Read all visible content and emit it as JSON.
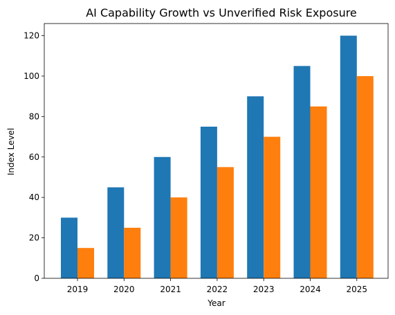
{
  "chart_data": {
    "type": "bar",
    "title": "AI Capability Growth vs Unverified Risk Exposure",
    "xlabel": "Year",
    "ylabel": "Index Level",
    "categories": [
      "2019",
      "2020",
      "2021",
      "2022",
      "2023",
      "2024",
      "2025"
    ],
    "series": [
      {
        "values": [
          30,
          45,
          60,
          75,
          90,
          105,
          120
        ],
        "color": "#1f77b4"
      },
      {
        "values": [
          15,
          25,
          40,
          55,
          70,
          85,
          100
        ],
        "color": "#ff7f0e"
      }
    ],
    "yticks": [
      0,
      20,
      40,
      60,
      80,
      100,
      120
    ],
    "ylim": [
      0,
      126
    ],
    "grid": false,
    "legend": "none"
  }
}
